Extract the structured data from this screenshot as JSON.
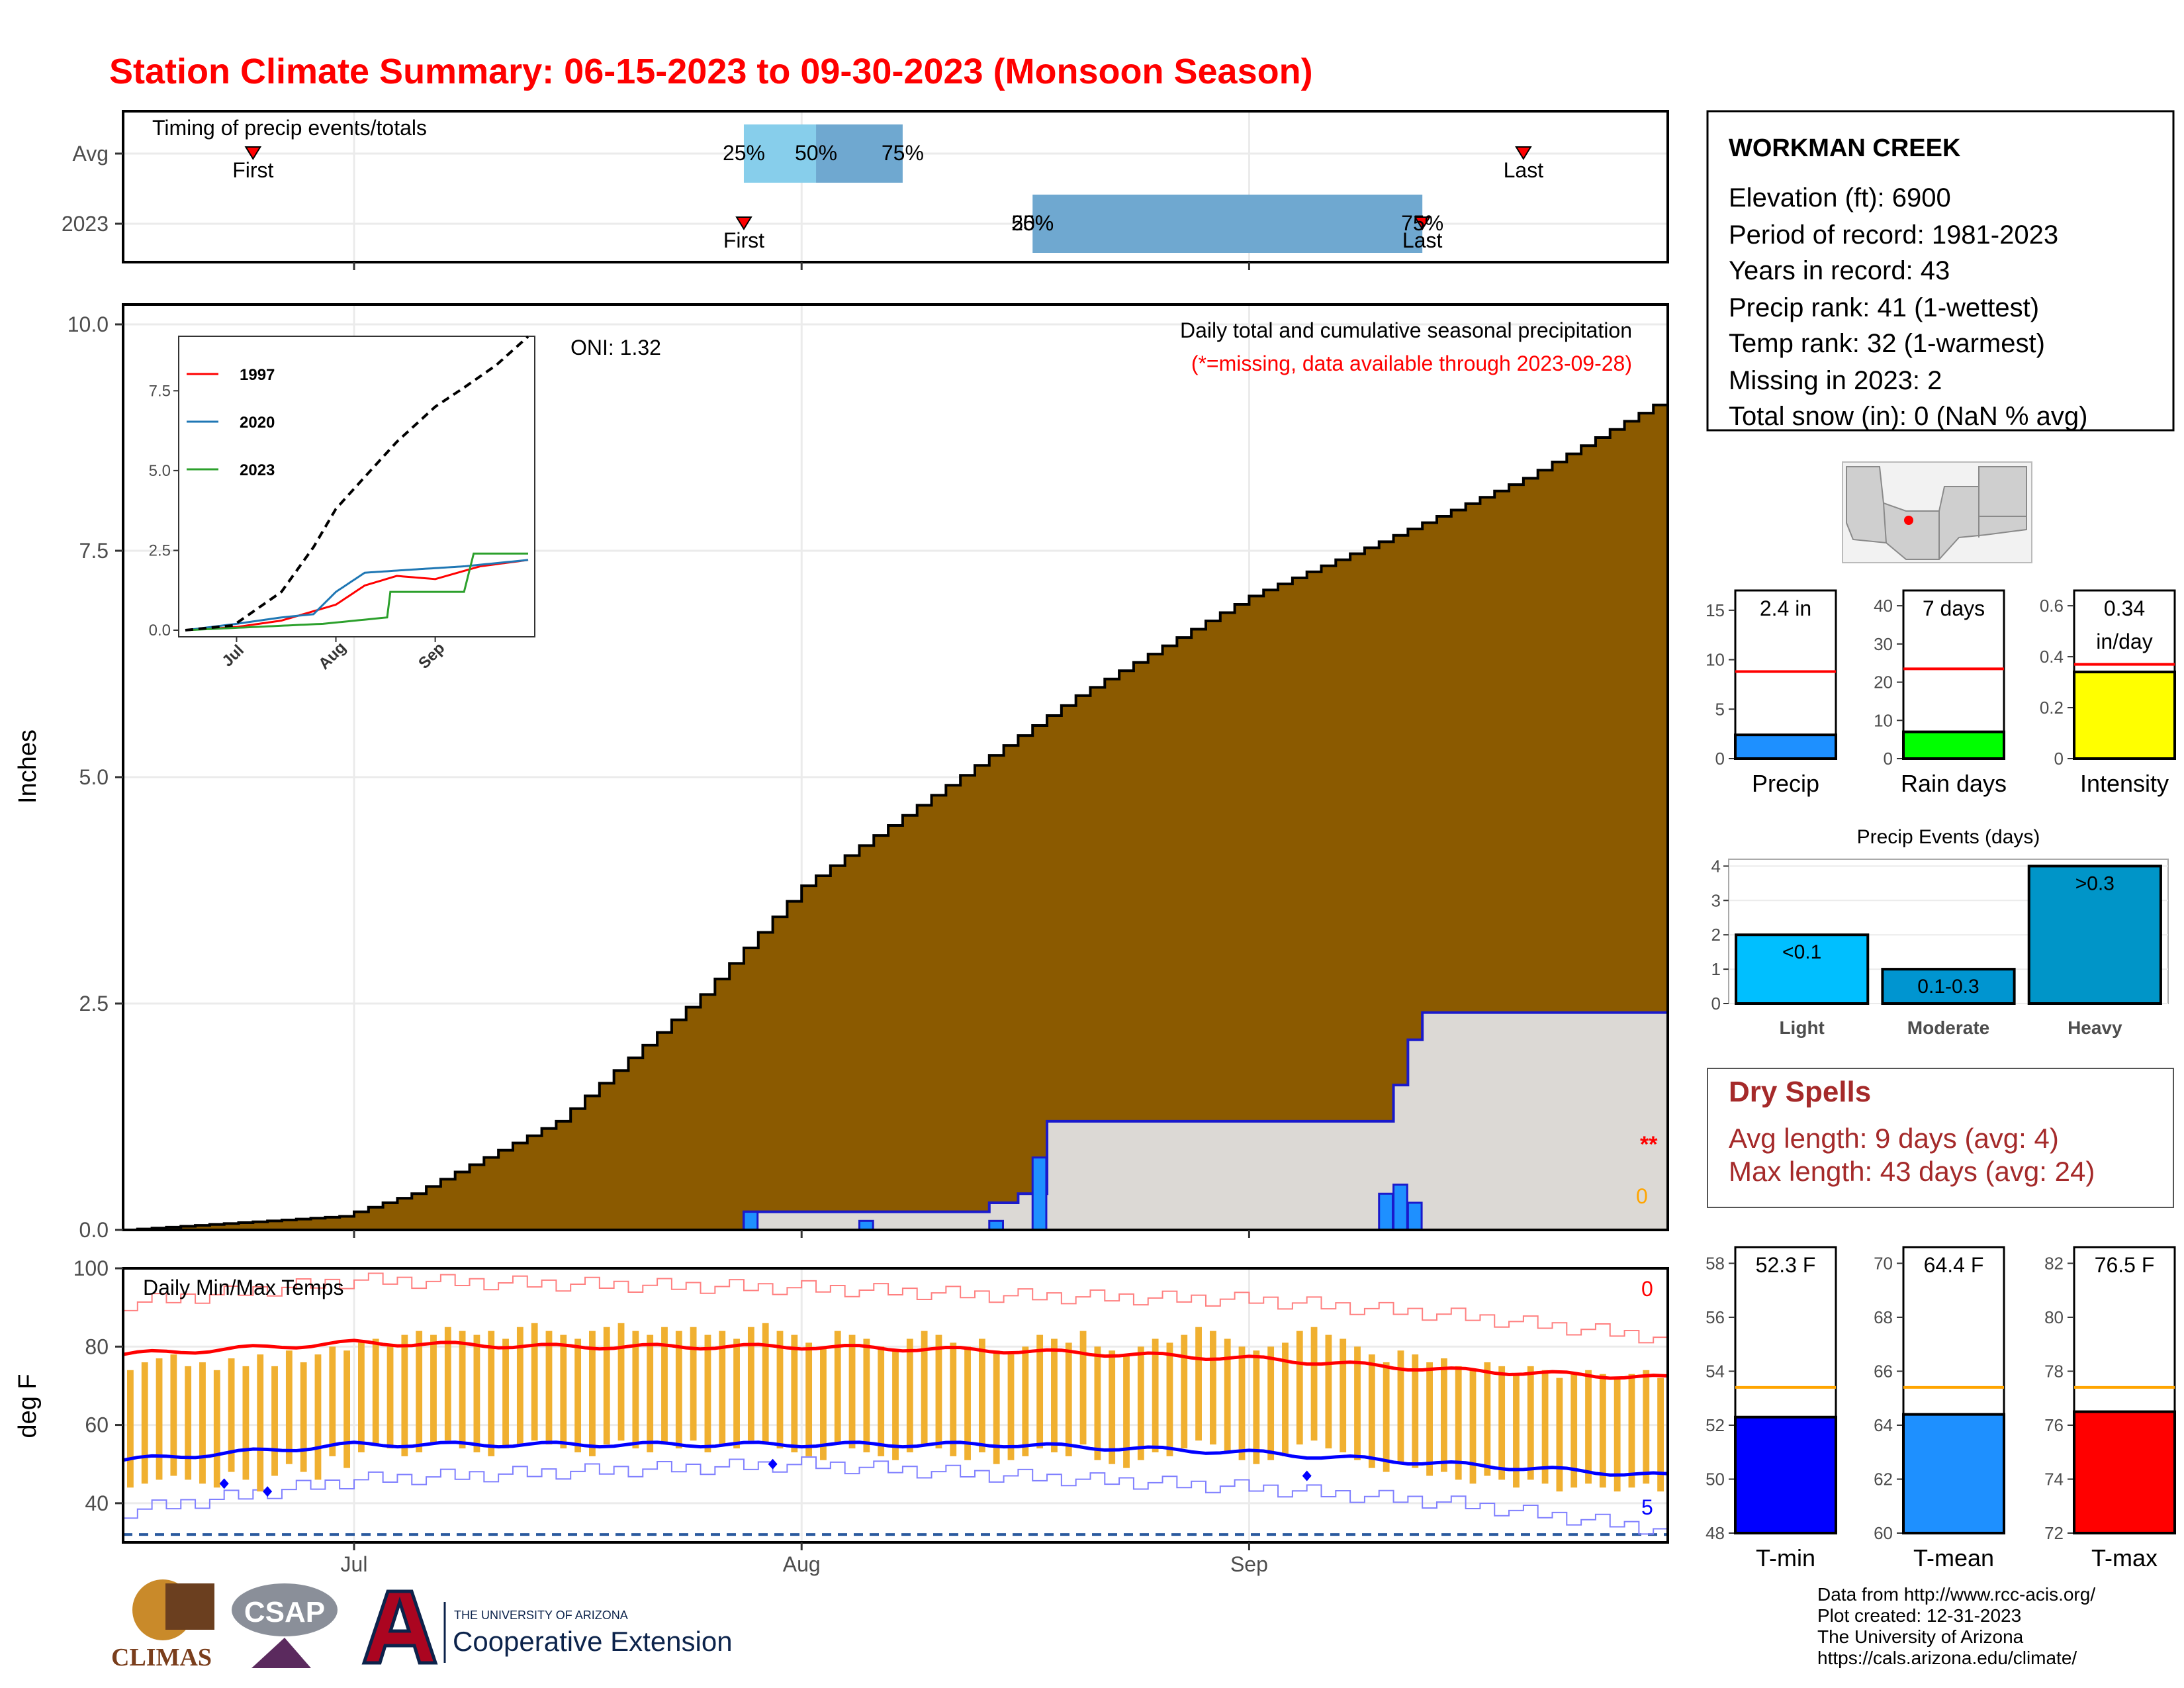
{
  "page_title": "Station Climate Summary: 06-15-2023 to 09-30-2023 (Monsoon Season)",
  "colors": {
    "title_red": "#ff0000",
    "cumulative_brown": "#8b5a00",
    "station_blue": "#1f6fff",
    "quartile_light": "#87ceeb",
    "quartile_dark": "#6fa8d0",
    "temp_bar_orange": "#f0b030",
    "avg_max_red": "#ff0000",
    "avg_min_blue": "#0000ff",
    "precip_bar_blue": "#1e90ff",
    "raindays_green": "#00ff00",
    "intensity_yellow": "#ffff00",
    "dry_spell_text": "#a52a2a",
    "events_cyan": "#00bfff",
    "events_mid": "#0095d0"
  },
  "station_info": {
    "name": "WORKMAN CREEK",
    "elevation": "Elevation (ft): 6900",
    "period": "Period of record: 1981-2023",
    "years": "Years in record: 43",
    "precip_rank": "Precip rank: 41 (1-wettest)",
    "temp_rank": "Temp rank: 32 (1-warmest)",
    "missing": "Missing in 2023: 2",
    "snow": "Total snow (in): 0 (NaN % avg)"
  },
  "dry_spells": {
    "title": "Dry Spells",
    "avg": "Avg length: 9 days (avg: 4)",
    "max": "Max length: 43 days (avg: 24)"
  },
  "footer": {
    "line1": "Data from http://www.rcc-acis.org/",
    "line2": "Plot created: 12-31-2023",
    "line3": "The University of Arizona",
    "line4": "https://cals.arizona.edu/climate/"
  },
  "logos": {
    "climas": "CLIMAS",
    "csap": "CSAP",
    "ua_small": "THE UNIVERSITY OF ARIZONA",
    "ua_big": "Cooperative Extension"
  },
  "chart_data": [
    {
      "id": "timing",
      "type": "bar",
      "title": "Timing of precip events/totals",
      "categories": [
        "Avg",
        "2023"
      ],
      "xlim": [
        "06-15",
        "09-30"
      ],
      "rows": [
        {
          "name": "Avg",
          "first": "06-24",
          "q25": "07-28",
          "q50": "08-02",
          "q75": "08-08",
          "last": "09-20",
          "labels": [
            "First",
            "25%",
            "50%",
            "75%",
            "Last"
          ]
        },
        {
          "name": "2023",
          "first": "07-28",
          "q25": "08-17",
          "q50": "08-17",
          "q75": "09-13",
          "last": "09-13",
          "labels": [
            "First",
            "25%",
            "50%",
            "75%",
            "Last"
          ]
        }
      ]
    },
    {
      "id": "precip",
      "type": "area",
      "title": "Daily total and cumulative seasonal precipitation",
      "subtitle": "(*=missing, data available through 2023-09-28)",
      "ylabel": "Inches",
      "ylim": [
        0,
        10
      ],
      "yticks": [
        0.0,
        2.5,
        5.0,
        7.5,
        10.0
      ],
      "xticks": [
        "Jul",
        "Aug",
        "Sep"
      ],
      "oni_label": "ONI: 1.32",
      "missing_marker": "**",
      "snow_marker": "0",
      "cumulative_avg": {
        "name": "Average cumulative",
        "x": [
          "06-15",
          "06-30",
          "07-05",
          "07-15",
          "07-25",
          "08-01",
          "08-10",
          "08-20",
          "09-01",
          "09-10",
          "09-20",
          "09-30"
        ],
        "y": [
          0.0,
          0.15,
          0.4,
          1.2,
          2.6,
          3.8,
          4.8,
          5.9,
          7.0,
          7.6,
          8.3,
          9.2
        ]
      },
      "cumulative_2023": {
        "name": "2023 cumulative",
        "x": [
          "06-15",
          "07-28",
          "08-14",
          "08-16",
          "08-17",
          "08-18",
          "09-10",
          "09-11",
          "09-12",
          "09-13",
          "09-30"
        ],
        "y": [
          0.0,
          0.2,
          0.3,
          0.4,
          0.4,
          1.2,
          1.2,
          1.6,
          2.1,
          2.4,
          2.4
        ]
      },
      "daily_2023": {
        "name": "2023 daily",
        "x": [
          "07-28",
          "08-05",
          "08-14",
          "08-17",
          "09-10",
          "09-11",
          "09-12"
        ],
        "y": [
          0.2,
          0.1,
          0.1,
          0.8,
          0.4,
          0.5,
          0.3
        ]
      }
    },
    {
      "id": "inset",
      "type": "line",
      "xticks": [
        "Jul",
        "Aug",
        "Sep"
      ],
      "ylim": [
        0,
        9
      ],
      "yticks": [
        0.0,
        2.5,
        5.0,
        7.5
      ],
      "series": [
        {
          "name": "1997",
          "color": "#ff0000",
          "x": [
            "06-15",
            "07-01",
            "07-15",
            "08-01",
            "08-10",
            "08-20",
            "09-01",
            "09-15",
            "09-30"
          ],
          "y": [
            0.0,
            0.1,
            0.3,
            0.8,
            1.4,
            1.7,
            1.6,
            2.0,
            2.2
          ]
        },
        {
          "name": "2020",
          "color": "#1f77b4",
          "x": [
            "06-15",
            "07-01",
            "07-15",
            "07-25",
            "08-01",
            "08-10",
            "08-25",
            "09-10",
            "09-30"
          ],
          "y": [
            0.0,
            0.2,
            0.4,
            0.5,
            1.2,
            1.8,
            1.9,
            2.0,
            2.2
          ]
        },
        {
          "name": "2023",
          "color": "#2ca02c",
          "x": [
            "06-15",
            "07-28",
            "08-17",
            "08-18",
            "09-10",
            "09-13",
            "09-30"
          ],
          "y": [
            0.0,
            0.2,
            0.4,
            1.2,
            1.2,
            2.4,
            2.4
          ]
        },
        {
          "name": "Average",
          "color": "#000000",
          "x": [
            "06-15",
            "06-30",
            "07-15",
            "07-25",
            "08-01",
            "08-10",
            "08-20",
            "09-01",
            "09-10",
            "09-20",
            "09-30"
          ],
          "y": [
            0.0,
            0.15,
            1.2,
            2.6,
            3.8,
            4.8,
            5.9,
            7.0,
            7.6,
            8.3,
            9.2
          ]
        }
      ]
    },
    {
      "id": "temps",
      "type": "bar",
      "title": "Daily Min/Max Temps",
      "ylabel": "deg F",
      "ylim": [
        30,
        100
      ],
      "yticks": [
        40,
        60,
        80,
        100
      ],
      "xticks": [
        "Jul",
        "Aug",
        "Sep"
      ],
      "corner_top": "0",
      "corner_bottom": "5",
      "freeze_line": 32,
      "avg_max": {
        "x": [
          "06-15",
          "07-01",
          "07-15",
          "08-01",
          "08-15",
          "09-01",
          "09-15",
          "09-30"
        ],
        "y": [
          78,
          81,
          80,
          80,
          79,
          77,
          74,
          72
        ]
      },
      "avg_min": {
        "x": [
          "06-15",
          "07-01",
          "07-15",
          "08-01",
          "08-15",
          "09-01",
          "09-15",
          "09-30"
        ],
        "y": [
          51,
          55,
          55,
          55,
          55,
          53,
          50,
          47
        ]
      },
      "record_max": {
        "x": [
          "06-15",
          "07-01",
          "07-15",
          "08-01",
          "08-15",
          "09-01",
          "09-15",
          "09-30"
        ],
        "y": [
          91,
          97,
          96,
          95,
          93,
          92,
          88,
          82
        ]
      },
      "record_min": {
        "x": [
          "06-15",
          "07-01",
          "07-15",
          "08-01",
          "08-15",
          "09-01",
          "09-15",
          "09-30"
        ],
        "y": [
          38,
          46,
          48,
          50,
          47,
          44,
          40,
          33
        ]
      },
      "daily_max": [
        74,
        76,
        77,
        78,
        75,
        76,
        74,
        77,
        75,
        78,
        75,
        79,
        76,
        78,
        80,
        79,
        81,
        82,
        80,
        83,
        84,
        83,
        85,
        84,
        83,
        84,
        82,
        85,
        86,
        84,
        83,
        82,
        84,
        85,
        86,
        84,
        83,
        85,
        84,
        85,
        83,
        84,
        82,
        85,
        86,
        84,
        83,
        81,
        80,
        84,
        83,
        82,
        80,
        79,
        82,
        84,
        83,
        81,
        80,
        82,
        79,
        78,
        80,
        83,
        82,
        81,
        84,
        80,
        79,
        78,
        80,
        82,
        81,
        83,
        85,
        84,
        82,
        80,
        79,
        80,
        81,
        84,
        85,
        83,
        82,
        80,
        78,
        76,
        79,
        78,
        76,
        77,
        75,
        74,
        76,
        75,
        73,
        75,
        74,
        72,
        73,
        74,
        73,
        72,
        73,
        74,
        72,
        70
      ],
      "daily_min": [
        44,
        45,
        46,
        47,
        46,
        45,
        44,
        48,
        46,
        43,
        47,
        50,
        48,
        46,
        52,
        49,
        53,
        55,
        54,
        52,
        53,
        55,
        56,
        54,
        53,
        52,
        54,
        55,
        56,
        55,
        54,
        53,
        52,
        55,
        56,
        54,
        53,
        55,
        54,
        56,
        53,
        55,
        54,
        56,
        55,
        54,
        53,
        52,
        51,
        55,
        54,
        53,
        52,
        51,
        53,
        55,
        54,
        52,
        51,
        53,
        50,
        51,
        52,
        54,
        53,
        52,
        55,
        51,
        50,
        49,
        51,
        53,
        52,
        54,
        56,
        55,
        53,
        51,
        50,
        51,
        52,
        55,
        56,
        54,
        53,
        51,
        49,
        48,
        50,
        49,
        47,
        48,
        46,
        45,
        47,
        46,
        44,
        46,
        45,
        43,
        44,
        45,
        44,
        43,
        44,
        45,
        43,
        41
      ],
      "markers": [
        {
          "x": "06-22",
          "y": 45
        },
        {
          "x": "06-25",
          "y": 43
        },
        {
          "x": "07-30",
          "y": 50
        },
        {
          "x": "09-05",
          "y": 47
        }
      ]
    },
    {
      "id": "precip_total",
      "type": "bar",
      "label": "2.4 in",
      "category": "Precip",
      "value": 2.4,
      "avg": 8.8,
      "ylim": [
        0,
        17
      ],
      "yticks": [
        0,
        5,
        10,
        15
      ]
    },
    {
      "id": "rain_days",
      "type": "bar",
      "label": "7 days",
      "category": "Rain days",
      "value": 7,
      "avg": 23.5,
      "ylim": [
        0,
        44
      ],
      "yticks": [
        0,
        10,
        20,
        30,
        40
      ]
    },
    {
      "id": "intensity",
      "type": "bar",
      "label_value": "0.34",
      "label_unit": "in/day",
      "category": "Intensity",
      "value": 0.34,
      "avg": 0.37,
      "ylim": [
        0,
        0.66
      ],
      "yticks": [
        0.0,
        0.2,
        0.4,
        0.6
      ]
    },
    {
      "id": "events",
      "type": "bar",
      "title": "Precip Events (days)",
      "categories": [
        "Light",
        "Moderate",
        "Heavy"
      ],
      "labels": [
        "<0.1",
        "0.1-0.3",
        ">0.3"
      ],
      "values": [
        2,
        1,
        4
      ],
      "ylim": [
        0,
        4.2
      ],
      "yticks": [
        0,
        1,
        2,
        3,
        4
      ]
    },
    {
      "id": "tmin",
      "type": "bar",
      "label": "52.3 F",
      "category": "T-min",
      "value": 52.3,
      "avg": 53.4,
      "ylim": [
        48,
        58.6
      ],
      "yticks": [
        48,
        50,
        52,
        54,
        56,
        58
      ]
    },
    {
      "id": "tmean",
      "type": "bar",
      "label": "64.4 F",
      "category": "T-mean",
      "value": 64.4,
      "avg": 65.4,
      "ylim": [
        60,
        70.6
      ],
      "yticks": [
        60,
        62,
        64,
        66,
        68,
        70
      ]
    },
    {
      "id": "tmax",
      "type": "bar",
      "label": "76.5 F",
      "category": "T-max",
      "value": 76.5,
      "avg": 77.4,
      "ylim": [
        72,
        82.6
      ],
      "yticks": [
        72,
        74,
        76,
        78,
        80,
        82
      ]
    }
  ]
}
